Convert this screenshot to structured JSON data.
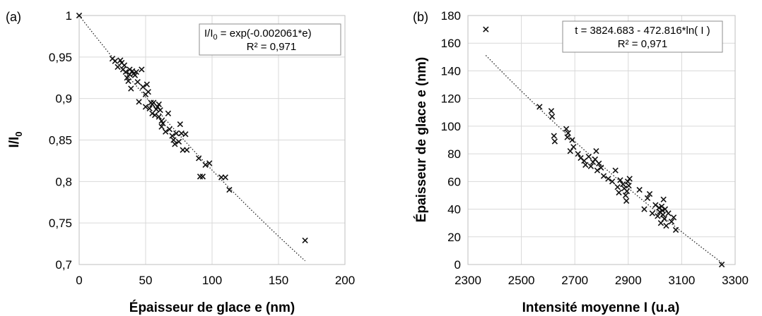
{
  "chart_data": [
    {
      "type": "scatter",
      "panel_label": "(a)",
      "xlabel": "Épaisseur de glace e (nm)",
      "ylabel_main": "I/I",
      "ylabel_sub": "0",
      "xlim": [
        0,
        200
      ],
      "ylim": [
        0.7,
        1.0
      ],
      "x_ticks": [
        0,
        50,
        100,
        150,
        200
      ],
      "x_tick_labels": [
        "0",
        "50",
        "100",
        "150",
        "200"
      ],
      "y_ticks": [
        0.7,
        0.75,
        0.8,
        0.85,
        0.9,
        0.95,
        1.0
      ],
      "y_tick_labels": [
        "0,7",
        "0,75",
        "0,8",
        "0,85",
        "0,9",
        "0,95",
        "1"
      ],
      "grid": "vertical and horizontal major gridlines",
      "trendline": {
        "kind": "exponential",
        "coef": -0.002061,
        "x_range": [
          0,
          170
        ]
      },
      "equation_parts": [
        "I/I",
        "0",
        " = exp(-0.002061*e)"
      ],
      "r2": "R² = 0,971",
      "series": [
        {
          "marker": "x",
          "x": [
            0,
            25,
            27,
            29,
            31,
            32,
            33,
            34,
            35,
            36,
            37,
            38,
            38,
            39,
            40,
            41,
            42,
            43,
            44,
            45,
            47,
            48,
            50,
            50,
            51,
            52,
            53,
            54,
            55,
            55,
            56,
            57,
            58,
            59,
            60,
            60,
            61,
            62,
            62,
            63,
            65,
            67,
            68,
            70,
            71,
            72,
            73,
            75,
            76,
            77,
            78,
            80,
            81,
            90,
            91,
            93,
            95,
            98,
            107,
            110,
            113,
            170
          ],
          "y": [
            1.0,
            0.948,
            0.945,
            0.938,
            0.946,
            0.943,
            0.935,
            0.94,
            0.932,
            0.925,
            0.921,
            0.935,
            0.929,
            0.912,
            0.933,
            0.93,
            0.928,
            0.932,
            0.92,
            0.896,
            0.935,
            0.914,
            0.905,
            0.89,
            0.917,
            0.908,
            0.888,
            0.895,
            0.893,
            0.882,
            0.895,
            0.88,
            0.887,
            0.89,
            0.893,
            0.878,
            0.886,
            0.873,
            0.866,
            0.87,
            0.86,
            0.882,
            0.863,
            0.855,
            0.85,
            0.845,
            0.858,
            0.848,
            0.869,
            0.858,
            0.838,
            0.857,
            0.838,
            0.828,
            0.806,
            0.806,
            0.82,
            0.822,
            0.805,
            0.805,
            0.79,
            0.729
          ]
        }
      ]
    },
    {
      "type": "scatter",
      "panel_label": "(b)",
      "xlabel": "Intensité moyenne I (u.a)",
      "ylabel": "Épaisseur de glace e (nm)",
      "xlim": [
        2300,
        3300
      ],
      "ylim": [
        0,
        180
      ],
      "x_ticks": [
        2300,
        2500,
        2700,
        2900,
        3100,
        3300
      ],
      "x_tick_labels": [
        "2300",
        "2500",
        "2700",
        "2900",
        "3100",
        "3300"
      ],
      "y_ticks": [
        0,
        20,
        40,
        60,
        80,
        100,
        120,
        140,
        160,
        180
      ],
      "y_tick_labels": [
        "0",
        "20",
        "40",
        "60",
        "80",
        "100",
        "120",
        "140",
        "160",
        "180"
      ],
      "grid": "vertical and horizontal major gridlines",
      "trendline": {
        "kind": "logarithmic",
        "a": 3824.683,
        "b": -472.816,
        "x_range": [
          2367,
          3250
        ]
      },
      "equation_parts": [
        "t = 3824.683  - 472.816*ln( I )"
      ],
      "r2": "R² = 0,971",
      "series": [
        {
          "marker": "x",
          "x": [
            2367,
            2568,
            2612,
            2615,
            2622,
            2625,
            2668,
            2672,
            2675,
            2683,
            2690,
            2695,
            2712,
            2722,
            2735,
            2740,
            2752,
            2760,
            2768,
            2776,
            2780,
            2784,
            2790,
            2798,
            2808,
            2825,
            2840,
            2852,
            2860,
            2865,
            2870,
            2880,
            2885,
            2890,
            2893,
            2895,
            2898,
            2902,
            2905,
            2942,
            2960,
            2972,
            2980,
            2990,
            3002,
            3010,
            3015,
            3018,
            3022,
            3025,
            3028,
            3030,
            3032,
            3035,
            3038,
            3042,
            3050,
            3062,
            3070,
            3078,
            3250
          ],
          "y": [
            170,
            114,
            111,
            107,
            93,
            89,
            98,
            92,
            95,
            82,
            90,
            85,
            80,
            77,
            75,
            72,
            78,
            71,
            74,
            76,
            82,
            68,
            73,
            70,
            64,
            62,
            60,
            68,
            56,
            52,
            61,
            58,
            55,
            50,
            46,
            53,
            60,
            57,
            62,
            54,
            40,
            48,
            51,
            37,
            43,
            35,
            41,
            38,
            30,
            42,
            39,
            36,
            47,
            33,
            40,
            28,
            37,
            31,
            34,
            25,
            0
          ]
        }
      ]
    }
  ]
}
